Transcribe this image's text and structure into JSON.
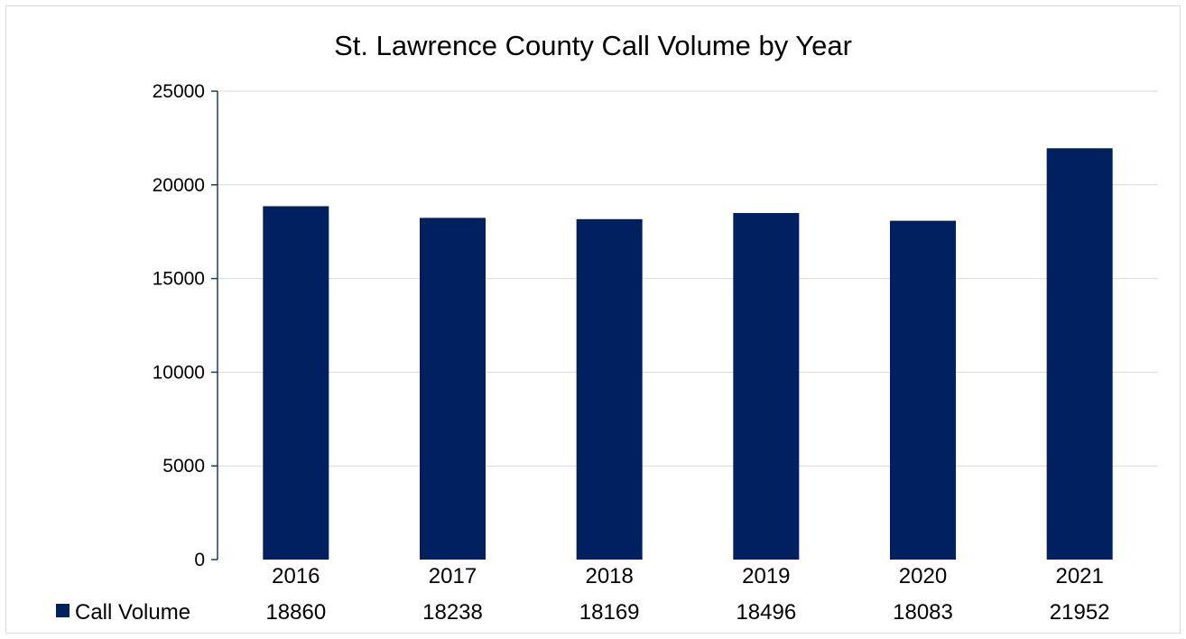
{
  "chart_data": {
    "type": "bar",
    "title": "St. Lawrence County Call Volume by Year",
    "xlabel": "",
    "ylabel": "",
    "categories": [
      "2016",
      "2017",
      "2018",
      "2019",
      "2020",
      "2021"
    ],
    "series": [
      {
        "name": "Call Volume",
        "values": [
          18860,
          18238,
          18169,
          18496,
          18083,
          21952
        ],
        "color": "#002060"
      }
    ],
    "ylim": [
      0,
      25000
    ],
    "yticks": [
      0,
      5000,
      10000,
      15000,
      20000,
      25000
    ],
    "grid": true,
    "legend": "data-table-left",
    "data_table": true
  }
}
